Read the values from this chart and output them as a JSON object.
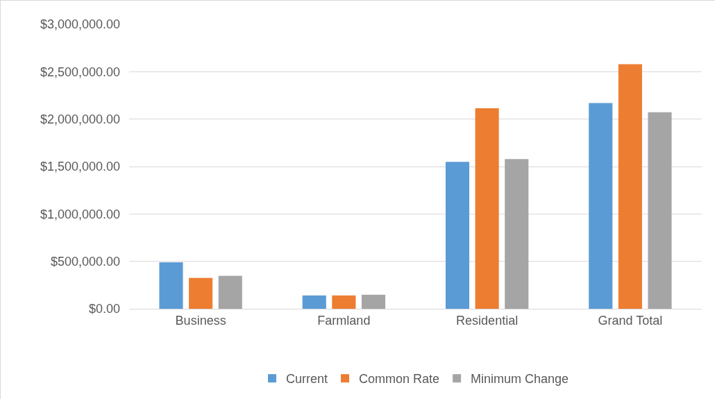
{
  "chart_data": {
    "type": "bar",
    "categories": [
      "Business",
      "Farmland",
      "Residential",
      "Grand Total"
    ],
    "series": [
      {
        "name": "Current",
        "color": "#5b9bd5",
        "values": [
          490000,
          140000,
          1550000,
          2170000
        ]
      },
      {
        "name": "Common Rate",
        "color": "#ed7d31",
        "values": [
          325000,
          140000,
          2115000,
          2580000
        ]
      },
      {
        "name": "Minimum Change",
        "color": "#a5a5a5",
        "values": [
          347000,
          148000,
          1578000,
          2073000
        ]
      }
    ],
    "ylim": [
      0,
      3000000
    ],
    "yticks": [
      {
        "value": 0,
        "label": "$0.00"
      },
      {
        "value": 500000,
        "label": "$500,000.00"
      },
      {
        "value": 1000000,
        "label": "$1,000,000.00"
      },
      {
        "value": 1500000,
        "label": "$1,500,000.00"
      },
      {
        "value": 2000000,
        "label": "$2,000,000.00"
      },
      {
        "value": 2500000,
        "label": "$2,500,000.00"
      },
      {
        "value": 3000000,
        "label": "$3,000,000.00"
      }
    ],
    "grid": "y",
    "legend": "bottom"
  }
}
